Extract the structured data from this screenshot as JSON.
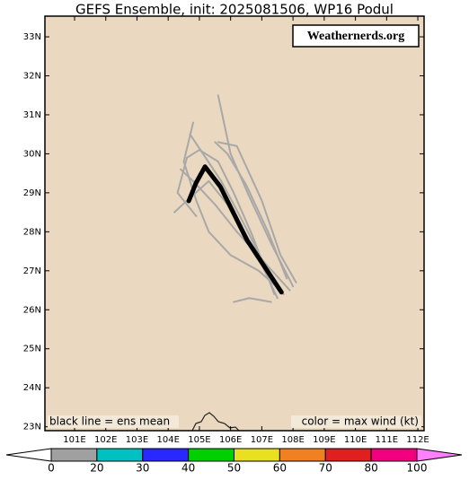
{
  "chart_data": {
    "type": "line",
    "title": "GEFS Ensemble, init: 2025081506, WP16 Podul",
    "watermark": "Weathernerds.org",
    "annotations": [
      "black line = ens mean",
      "color = max wind (kt)"
    ],
    "background": "#ead9c0",
    "xlim": [
      100.05,
      112.2
    ],
    "ylim": [
      22.9,
      33.53
    ],
    "xticks": [
      {
        "value": 101,
        "label": "101E"
      },
      {
        "value": 102,
        "label": "102E"
      },
      {
        "value": 103,
        "label": "103E"
      },
      {
        "value": 104,
        "label": "104E"
      },
      {
        "value": 105,
        "label": "105E"
      },
      {
        "value": 106,
        "label": "106E"
      },
      {
        "value": 107,
        "label": "107E"
      },
      {
        "value": 108,
        "label": "108E"
      },
      {
        "value": 109,
        "label": "109E"
      },
      {
        "value": 110,
        "label": "110E"
      },
      {
        "value": 111,
        "label": "111E"
      },
      {
        "value": 112,
        "label": "112E"
      }
    ],
    "yticks": [
      {
        "value": 23,
        "label": "23N"
      },
      {
        "value": 24,
        "label": "24N"
      },
      {
        "value": 25,
        "label": "25N"
      },
      {
        "value": 26,
        "label": "26N"
      },
      {
        "value": 27,
        "label": "27N"
      },
      {
        "value": 28,
        "label": "28N"
      },
      {
        "value": 29,
        "label": "29N"
      },
      {
        "value": 30,
        "label": "30N"
      },
      {
        "value": 31,
        "label": "31N"
      },
      {
        "value": 32,
        "label": "32N"
      },
      {
        "value": 33,
        "label": "33N"
      }
    ],
    "series": [
      {
        "color": "#a8a8a8",
        "width": 2,
        "x": [
          107.7,
          107.0,
          106.3,
          105.7,
          105.2,
          104.7
        ],
        "values": [
          26.4,
          27.3,
          28.4,
          29.3,
          29.9,
          30.5
        ]
      },
      {
        "color": "#a8a8a8",
        "width": 2,
        "x": [
          108.0,
          107.3,
          106.6,
          106.0,
          105.6
        ],
        "values": [
          26.6,
          27.7,
          28.9,
          30.0,
          31.5
        ]
      },
      {
        "color": "#a8a8a8",
        "width": 2,
        "x": [
          107.9,
          107.1,
          106.2,
          105.5,
          104.8,
          104.4
        ],
        "values": [
          26.5,
          27.2,
          28.0,
          28.7,
          29.3,
          29.6
        ]
      },
      {
        "color": "#a8a8a8",
        "width": 2,
        "x": [
          107.5,
          106.8,
          106.0,
          105.3,
          104.6,
          104.2
        ],
        "values": [
          26.3,
          27.5,
          28.6,
          29.3,
          28.8,
          28.5
        ]
      },
      {
        "color": "#a8a8a8",
        "width": 2,
        "x": [
          107.8,
          107.2,
          106.5,
          105.9,
          105.5
        ],
        "values": [
          26.8,
          28.0,
          29.2,
          30.0,
          30.3
        ]
      },
      {
        "color": "#a8a8a8",
        "width": 2,
        "x": [
          107.3,
          106.6,
          106.1
        ],
        "values": [
          26.2,
          26.3,
          26.2
        ]
      },
      {
        "color": "#a8a8a8",
        "width": 2,
        "x": [
          108.1,
          107.6,
          107.0,
          106.2,
          105.6
        ],
        "values": [
          26.7,
          27.4,
          28.8,
          30.2,
          30.3
        ]
      },
      {
        "color": "#a8a8a8",
        "width": 2,
        "x": [
          107.6,
          106.9,
          106.0,
          105.3,
          104.9,
          104.5,
          104.8
        ],
        "values": [
          26.5,
          27.0,
          27.4,
          28.0,
          28.8,
          29.8,
          30.8
        ]
      },
      {
        "color": "#a8a8a8",
        "width": 2,
        "x": [
          107.4,
          106.7,
          106.1,
          105.6,
          105.0,
          104.6,
          104.3,
          104.9
        ],
        "values": [
          26.4,
          27.9,
          29.0,
          29.8,
          30.1,
          29.9,
          29.0,
          28.4
        ]
      },
      {
        "color": "#000000",
        "width": 5,
        "x": [
          107.63,
          106.53,
          105.67,
          105.18,
          104.89,
          104.66
        ],
        "values": [
          26.45,
          27.78,
          29.16,
          29.67,
          29.25,
          28.79
        ]
      }
    ],
    "colorbar": {
      "ticks": [
        0,
        20,
        30,
        40,
        50,
        60,
        70,
        80,
        100
      ],
      "colors": [
        "#a0a0a0",
        "#00c0c0",
        "#2828ff",
        "#00d000",
        "#e8e020",
        "#f08020",
        "#e02020",
        "#f0007f"
      ],
      "under": "#ffffff",
      "over": "#ff80ff"
    }
  }
}
